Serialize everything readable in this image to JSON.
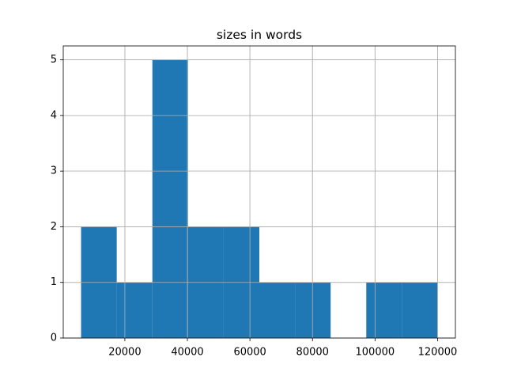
{
  "chart_data": {
    "type": "histogram",
    "title": "sizes in words",
    "bins": [
      6000,
      17400,
      28800,
      40200,
      51600,
      63000,
      74400,
      85800,
      97200,
      108600,
      120000
    ],
    "values": [
      2,
      1,
      5,
      2,
      2,
      1,
      1,
      0,
      1,
      1
    ],
    "color": "#1f77b4",
    "xlim": [
      300,
      125700
    ],
    "xticks": [
      20000,
      40000,
      60000,
      80000,
      100000,
      120000
    ],
    "ylim": [
      0,
      5.25
    ],
    "yticks": [
      0,
      1,
      2,
      3,
      4,
      5
    ],
    "grid": true
  }
}
